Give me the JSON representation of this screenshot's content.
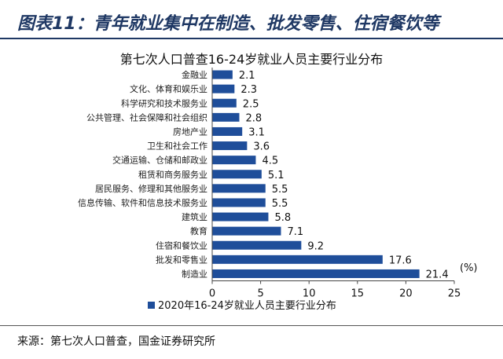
{
  "header": {
    "title": "图表11：青年就业集中在制造、批发零售、住宿餐饮等"
  },
  "source": "来源：第七次人口普查，国金证券研究所",
  "chart_data": {
    "type": "bar",
    "orientation": "horizontal",
    "title": "第七次人口普查16-24岁就业人员主要行业分布",
    "categories": [
      "金融业",
      "文化、体育和娱乐业",
      "科学研究和技术服务业",
      "公共管理、社会保障和社会组织",
      "房地产业",
      "卫生和社会工作",
      "交通运输、仓储和邮政业",
      "租赁和商务服务业",
      "居民服务、修理和其他服务业",
      "信息传输、软件和信息技术服务业",
      "建筑业",
      "教育",
      "住宿和餐饮业",
      "批发和零售业",
      "制造业"
    ],
    "series": [
      {
        "name": "2020年16-24岁就业人员主要行业分布",
        "values": [
          2.1,
          2.3,
          2.5,
          2.8,
          3.1,
          3.6,
          4.5,
          5.1,
          5.5,
          5.5,
          5.8,
          7.1,
          9.2,
          17.6,
          21.4
        ]
      }
    ],
    "xlim": [
      0,
      25
    ],
    "xticks": [
      0,
      5,
      10,
      15,
      20,
      25
    ],
    "unit_label": "(%)",
    "grid": false,
    "legend_position": "bottom",
    "colors": {
      "bar": "#1f4e9a",
      "title": "#1f3864"
    }
  }
}
